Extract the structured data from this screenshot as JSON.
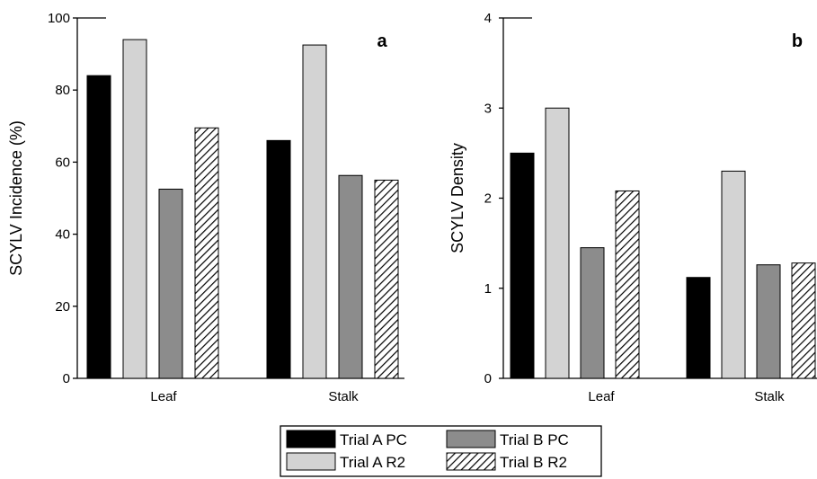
{
  "chart_data": [
    {
      "type": "bar",
      "panel_label": "a",
      "ylabel": "SCYLV Incidence (%)",
      "ylim": [
        0,
        100
      ],
      "yticks": [
        "0",
        "20",
        "40",
        "60",
        "80",
        "100"
      ],
      "categories": [
        "Leaf",
        "Stalk"
      ],
      "series": [
        {
          "name": "Trial A  PC",
          "values": [
            84,
            66
          ]
        },
        {
          "name": "Trial A  R2",
          "values": [
            94,
            92.5
          ]
        },
        {
          "name": "Trial B  PC",
          "values": [
            52.5,
            56.3
          ]
        },
        {
          "name": "Trial B  R2",
          "values": [
            69.5,
            55
          ]
        }
      ]
    },
    {
      "type": "bar",
      "panel_label": "b",
      "ylabel": "SCYLV Density",
      "ylim": [
        0,
        4
      ],
      "yticks": [
        "0",
        "1",
        "2",
        "3",
        "4"
      ],
      "categories": [
        "Leaf",
        "Stalk"
      ],
      "series": [
        {
          "name": "Trial A  PC",
          "values": [
            2.5,
            1.12
          ]
        },
        {
          "name": "Trial A  R2",
          "values": [
            3.0,
            2.3
          ]
        },
        {
          "name": "Trial B  PC",
          "values": [
            1.45,
            1.26
          ]
        },
        {
          "name": "Trial B  R2",
          "values": [
            2.08,
            1.28
          ]
        }
      ]
    }
  ],
  "legend": {
    "items": [
      {
        "label": "Trial A  PC",
        "fill": "#000000"
      },
      {
        "label": "Trial B  PC",
        "fill": "#8c8c8c"
      },
      {
        "label": "Trial A  R2",
        "fill": "#d3d3d3"
      },
      {
        "label": "Trial B  R2",
        "fill": "hatch"
      }
    ]
  },
  "colors": {
    "trial_a_pc": "#000000",
    "trial_a_r2": "#d3d3d3",
    "trial_b_pc": "#8c8c8c",
    "trial_b_r2": "hatch"
  }
}
